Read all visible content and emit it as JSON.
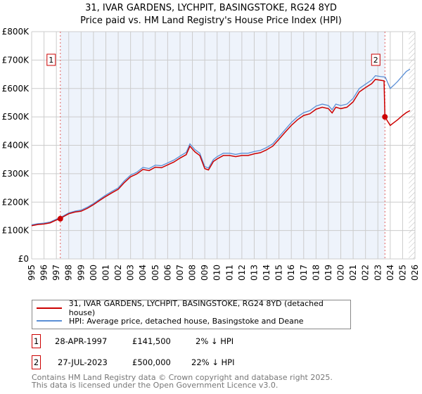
{
  "title": "31, IVAR GARDENS, LYCHPIT, BASINGSTOKE, RG24 8YD",
  "subtitle": "Price paid vs. HM Land Registry's House Price Index (HPI)",
  "chart_data": {
    "type": "line",
    "xlim": [
      1995,
      2026
    ],
    "ylim": [
      0,
      800000
    ],
    "x_ticks": [
      "1995",
      "1996",
      "1997",
      "1998",
      "1999",
      "2000",
      "2001",
      "2002",
      "2003",
      "2004",
      "2005",
      "2006",
      "2007",
      "2008",
      "2009",
      "2010",
      "2011",
      "2012",
      "2013",
      "2014",
      "2015",
      "2016",
      "2017",
      "2018",
      "2019",
      "2020",
      "2021",
      "2022",
      "2023",
      "2024",
      "2025",
      "2026"
    ],
    "y_ticks": [
      {
        "v": 0,
        "label": "£0"
      },
      {
        "v": 100000,
        "label": "£100K"
      },
      {
        "v": 200000,
        "label": "£200K"
      },
      {
        "v": 300000,
        "label": "£300K"
      },
      {
        "v": 400000,
        "label": "£400K"
      },
      {
        "v": 500000,
        "label": "£500K"
      },
      {
        "v": 600000,
        "label": "£600K"
      },
      {
        "v": 700000,
        "label": "£700K"
      },
      {
        "v": 800000,
        "label": "£800K"
      }
    ],
    "series": [
      {
        "name": "HPI: Average price, detached house, Basingstoke and Deane",
        "color": "#5b8fd6",
        "x": [
          1995,
          1995.5,
          1996,
          1996.5,
          1997,
          1997.5,
          1998,
          1998.5,
          1999,
          1999.5,
          2000,
          2000.5,
          2001,
          2001.5,
          2002,
          2002.5,
          2003,
          2003.5,
          2004,
          2004.5,
          2005,
          2005.5,
          2006,
          2006.5,
          2007,
          2007.5,
          2007.8,
          2008.2,
          2008.6,
          2009,
          2009.3,
          2009.7,
          2010,
          2010.5,
          2011,
          2011.5,
          2012,
          2012.5,
          2013,
          2013.5,
          2014,
          2014.5,
          2015,
          2015.5,
          2016,
          2016.5,
          2017,
          2017.5,
          2018,
          2018.5,
          2019,
          2019.3,
          2019.6,
          2020,
          2020.5,
          2021,
          2021.5,
          2022,
          2022.5,
          2022.8,
          2023.2,
          2023.6,
          2024,
          2024.3,
          2024.6,
          2025,
          2025.3,
          2025.6
        ],
        "y": [
          120000,
          124000,
          126000,
          130000,
          140000,
          150000,
          162000,
          168000,
          172000,
          182000,
          195000,
          210000,
          225000,
          238000,
          250000,
          275000,
          295000,
          305000,
          322000,
          318000,
          330000,
          328000,
          338000,
          348000,
          362000,
          375000,
          405000,
          385000,
          372000,
          325000,
          320000,
          350000,
          360000,
          372000,
          372000,
          368000,
          372000,
          372000,
          378000,
          382000,
          392000,
          405000,
          430000,
          455000,
          480000,
          500000,
          515000,
          522000,
          538000,
          545000,
          540000,
          525000,
          545000,
          540000,
          545000,
          565000,
          600000,
          615000,
          630000,
          645000,
          642000,
          640000,
          600000,
          612000,
          625000,
          645000,
          660000,
          668000
        ]
      },
      {
        "name": "31, IVAR GARDENS, LYCHPIT, BASINGSTOKE, RG24 8YD (detached house)",
        "color": "#cc0000",
        "x": [
          1995,
          1995.5,
          1996,
          1996.5,
          1997,
          1997.32,
          1997.5,
          1998,
          1998.5,
          1999,
          1999.5,
          2000,
          2000.5,
          2001,
          2001.5,
          2002,
          2002.5,
          2003,
          2003.5,
          2004,
          2004.5,
          2005,
          2005.5,
          2006,
          2006.5,
          2007,
          2007.5,
          2007.8,
          2008.2,
          2008.6,
          2009,
          2009.3,
          2009.7,
          2010,
          2010.5,
          2011,
          2011.5,
          2012,
          2012.5,
          2013,
          2013.5,
          2014,
          2014.5,
          2015,
          2015.5,
          2016,
          2016.5,
          2017,
          2017.5,
          2018,
          2018.5,
          2019,
          2019.3,
          2019.6,
          2020,
          2020.5,
          2021,
          2021.5,
          2022,
          2022.5,
          2022.8,
          2023.2,
          2023.5,
          2023.57,
          2024,
          2024.3,
          2024.6,
          2025,
          2025.3,
          2025.6
        ],
        "y": [
          117000,
          121000,
          123000,
          127000,
          137000,
          141500,
          147000,
          159000,
          165000,
          168000,
          178000,
          191000,
          206000,
          220000,
          233000,
          245000,
          269000,
          289000,
          299000,
          315000,
          311000,
          323000,
          321000,
          331000,
          341000,
          355000,
          367000,
          397000,
          377000,
          364000,
          318000,
          313000,
          343000,
          352000,
          364000,
          364000,
          360000,
          364000,
          364000,
          370000,
          374000,
          384000,
          397000,
          421000,
          446000,
          470000,
          490000,
          505000,
          511000,
          527000,
          534000,
          529000,
          514000,
          534000,
          529000,
          534000,
          553000,
          588000,
          603000,
          617000,
          632000,
          629000,
          627000,
          500000,
          470000,
          480000,
          490000,
          505000,
          515000,
          522000
        ]
      }
    ],
    "sales": [
      {
        "label": "1",
        "x": 1997.32,
        "y": 141500
      },
      {
        "label": "2",
        "x": 2023.57,
        "y": 500000
      }
    ],
    "shaded_range": [
      1997.32,
      2023.57
    ],
    "hatched_from": 2025.5
  },
  "legend": {
    "property": "31, IVAR GARDENS, LYCHPIT, BASINGSTOKE, RG24 8YD (detached house)",
    "hpi": "HPI: Average price, detached house, Basingstoke and Deane"
  },
  "transactions": [
    {
      "num": "1",
      "date": "28-APR-1997",
      "price": "£141,500",
      "hpi": "2% ↓ HPI"
    },
    {
      "num": "2",
      "date": "27-JUL-2023",
      "price": "£500,000",
      "hpi": "22% ↓ HPI"
    }
  ],
  "footer": [
    "Contains HM Land Registry data © Crown copyright and database right 2025.",
    "This data is licensed under the Open Government Licence v3.0."
  ]
}
